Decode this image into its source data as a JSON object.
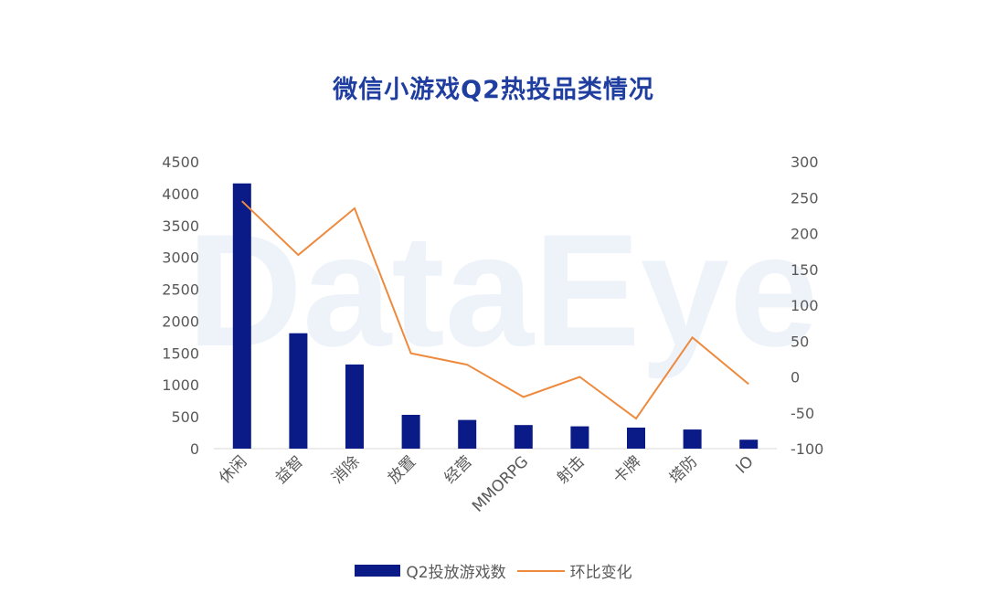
{
  "chart_data": {
    "type": "bar",
    "title": "微信小游戏Q2热投品类情况",
    "categories": [
      "休闲",
      "益智",
      "消除",
      "放置",
      "经营",
      "MMORPG",
      "射击",
      "卡牌",
      "塔防",
      "IO"
    ],
    "series": [
      {
        "name": "Q2投放游戏数",
        "type": "bar",
        "axis": "left",
        "values": [
          4160,
          1810,
          1320,
          530,
          450,
          370,
          350,
          330,
          300,
          140
        ]
      },
      {
        "name": "环比变化",
        "type": "line",
        "axis": "right",
        "values": [
          245,
          170,
          235,
          33,
          17,
          -28,
          0,
          -58,
          55,
          -10
        ]
      }
    ],
    "y_left": {
      "min": 0,
      "max": 4500,
      "ticks": [
        0,
        500,
        1000,
        1500,
        2000,
        2500,
        3000,
        3500,
        4000,
        4500
      ]
    },
    "y_right": {
      "min": -100,
      "max": 300,
      "ticks": [
        -100,
        -50,
        0,
        50,
        100,
        150,
        200,
        250,
        300
      ]
    },
    "grid": false,
    "legend_position": "bottom",
    "colors": {
      "bar": "#0a1a86",
      "line": "#ed8a3e",
      "title": "#1f3ea0"
    },
    "watermark": "DataEye"
  }
}
